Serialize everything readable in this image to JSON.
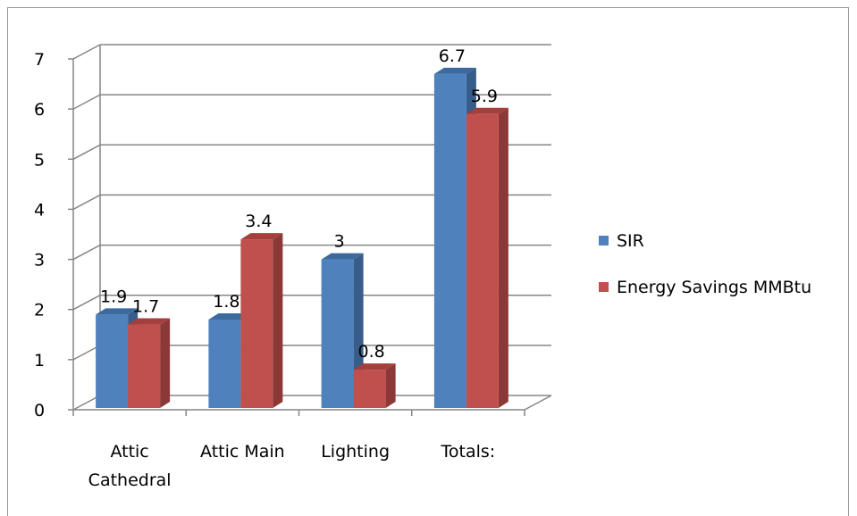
{
  "chart_data": {
    "type": "bar",
    "title": "",
    "xlabel": "",
    "ylabel": "",
    "categories": [
      [
        "Attic",
        "Cathedral"
      ],
      [
        "Attic Main"
      ],
      [
        "Lighting"
      ],
      [
        "Totals:"
      ]
    ],
    "series": [
      {
        "name": "SIR",
        "values": [
          1.9,
          1.8,
          3,
          6.7
        ],
        "labels": [
          "1.9",
          "1.8",
          "3",
          "6.7"
        ],
        "color": "#4F81BD",
        "side_color": "#385D8A",
        "top_color": "#3D6A9E"
      },
      {
        "name": "Energy Savings MMBtu",
        "values": [
          1.7,
          3.4,
          0.8,
          5.9
        ],
        "labels": [
          "1.7",
          "3.4",
          "0.8",
          "5.9"
        ],
        "color": "#C0504D",
        "side_color": "#8C3836",
        "top_color": "#A43F3D"
      }
    ],
    "yticks": [
      "0",
      "1",
      "2",
      "3",
      "4",
      "5",
      "6",
      "7"
    ],
    "ylim": [
      0,
      7
    ],
    "grid": true,
    "legend_position": "right",
    "style": "3d-clustered-column"
  }
}
